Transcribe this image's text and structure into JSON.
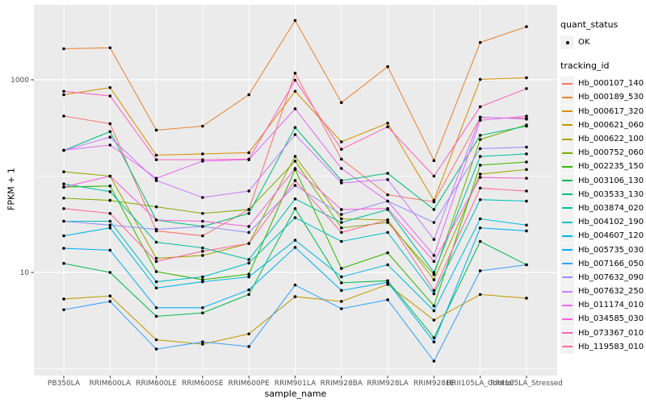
{
  "figure": {
    "x_axis_title": "sample_name",
    "y_axis_title": "FPKM + 1",
    "y_tick_labels": [
      "1000",
      "10"
    ],
    "legend": {
      "quant_status_title": "quant_status",
      "quant_status_ok_label": "OK",
      "tracking_id_title": "tracking_id"
    },
    "colors": {
      "panel_bg": "#EBEBEB",
      "grid": "#FFFFFF",
      "point": "#000000",
      "tick_mark": "#333333",
      "tick_text": "#4D4D4D",
      "legend_key_bg": "#F2F2F2"
    }
  },
  "chart_data": {
    "type": "line",
    "title": "",
    "xlabel": "sample_name",
    "ylabel": "FPKM + 1",
    "y_scale": "log10",
    "ylim": [
      0.9,
      6000
    ],
    "y_major_ticks": [
      10,
      1000
    ],
    "y_gridlines": [
      1,
      10,
      100,
      1000
    ],
    "legend_position": "right",
    "quant_status": "OK",
    "categories": [
      "PB350LA",
      "RRIM600LA",
      "RRIM600LE",
      "RRIM600SE",
      "RRIM600PE",
      "RRIM901LA",
      "RRIM928BA",
      "RRIM928LA",
      "RRIM928LE",
      "RRII105LA_Control",
      "RRII105LA_Stressed"
    ],
    "series": [
      {
        "name": "Hb_000107_140",
        "color": "#F8766D",
        "values": [
          420,
          350,
          27,
          24,
          45,
          1170,
          150,
          64,
          54,
          405,
          400
        ]
      },
      {
        "name": "Hb_000189_530",
        "color": "#EA8331",
        "values": [
          2100,
          2150,
          300,
          330,
          700,
          4130,
          580,
          1370,
          145,
          2440,
          3560
        ]
      },
      {
        "name": "Hb_000617_320",
        "color": "#D89000",
        "values": [
          700,
          830,
          165,
          170,
          175,
          760,
          227,
          355,
          56,
          1010,
          1050
        ]
      },
      {
        "name": "Hb_000621_060",
        "color": "#C09B00",
        "values": [
          5.3,
          5.7,
          2.0,
          1.8,
          2.3,
          5.6,
          5.0,
          7.5,
          3.2,
          5.9,
          5.4
        ]
      },
      {
        "name": "Hb_000622_100",
        "color": "#A3A500",
        "values": [
          111,
          100,
          14,
          15,
          20,
          160,
          36,
          35,
          8.4,
          105,
          117
        ]
      },
      {
        "name": "Hb_000752_060",
        "color": "#7CAE00",
        "values": [
          59,
          56,
          48,
          41,
          45,
          143,
          29,
          33,
          9.5,
          240,
          340
        ]
      },
      {
        "name": "Hb_002235_150",
        "color": "#39B600",
        "values": [
          77,
          79,
          10.2,
          8.4,
          9.6,
          117,
          11,
          16,
          4.5,
          130,
          140
        ]
      },
      {
        "name": "Hb_003106_130",
        "color": "#00BB4E",
        "values": [
          12.4,
          10,
          3.5,
          3.8,
          5.9,
          46,
          7.8,
          8.2,
          2.1,
          21,
          12
        ]
      },
      {
        "name": "Hb_003533_130",
        "color": "#00BF7D",
        "values": [
          185,
          290,
          35,
          30,
          41,
          320,
          90,
          107,
          45,
          265,
          330
        ]
      },
      {
        "name": "Hb_003874_020",
        "color": "#00C1A3",
        "values": [
          83,
          69,
          20.6,
          18,
          13.6,
          58,
          33,
          45,
          10,
          160,
          170
        ]
      },
      {
        "name": "Hb_004102_190",
        "color": "#00BFC4",
        "values": [
          34,
          34,
          8.0,
          9.0,
          12.5,
          37,
          21,
          26,
          6.0,
          57,
          55
        ]
      },
      {
        "name": "Hb_004607_120",
        "color": "#00BAE0",
        "values": [
          24,
          29,
          6.9,
          8.0,
          9.0,
          21.6,
          9.0,
          12,
          4.0,
          36,
          31
        ]
      },
      {
        "name": "Hb_005735_030",
        "color": "#00B0F6",
        "values": [
          17.8,
          17,
          4.3,
          4.3,
          6.6,
          18.2,
          6.5,
          7.9,
          1.9,
          29,
          27
        ]
      },
      {
        "name": "Hb_007166_050",
        "color": "#35A2FF",
        "values": [
          4.1,
          5.0,
          1.6,
          1.9,
          1.7,
          7.4,
          4.2,
          5.2,
          1.2,
          10.4,
          12.0
        ]
      },
      {
        "name": "Hb_007632_090",
        "color": "#9590FF",
        "values": [
          34,
          31,
          28,
          30,
          26,
          80,
          40,
          55,
          33,
          193,
          200
        ]
      },
      {
        "name": "Hb_007632_250",
        "color": "#C77CFF",
        "values": [
          185,
          254,
          90,
          60,
          70,
          270,
          85,
          92,
          22,
          410,
          390
        ]
      },
      {
        "name": "Hb_011174_010",
        "color": "#E76BF3",
        "values": [
          186,
          210,
          95,
          143,
          148,
          500,
          120,
          55,
          15,
          380,
          420
        ]
      },
      {
        "name": "Hb_034585_030",
        "color": "#FA62DB",
        "values": [
          77,
          100,
          35,
          34,
          30,
          120,
          45,
          46,
          13,
          97,
          95
        ]
      },
      {
        "name": "Hb_073367_010",
        "color": "#FF62BC",
        "values": [
          760,
          680,
          148,
          148,
          150,
          990,
          190,
          325,
          100,
          525,
          810
        ]
      },
      {
        "name": "Hb_119583_010",
        "color": "#FF6A98",
        "values": [
          46,
          41,
          13,
          16.6,
          20,
          90,
          26,
          35,
          6.5,
          75,
          70
        ]
      }
    ]
  }
}
